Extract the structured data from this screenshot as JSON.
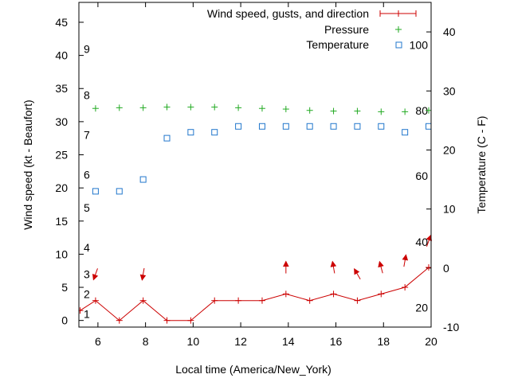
{
  "chart_data": {
    "type": "line",
    "xlabel": "Local time (America/New_York)",
    "ylabel_left": "Wind speed (kt - Beaufort)",
    "ylabel_right": "Temperature (C - F)",
    "xlim": [
      5.2,
      20
    ],
    "ylim_left": [
      -1,
      48
    ],
    "ylim_right": [
      -10,
      45
    ],
    "x_ticks": [
      6,
      8,
      10,
      12,
      14,
      16,
      18,
      20
    ],
    "y_left_ticks": [
      0,
      5,
      10,
      15,
      20,
      25,
      30,
      35,
      40,
      45
    ],
    "y_right_ticks": [
      -10,
      0,
      10,
      20,
      30,
      40
    ],
    "beaufort_labels": [
      {
        "label": "1",
        "kt": 1.0
      },
      {
        "label": "2",
        "kt": 4.0
      },
      {
        "label": "3",
        "kt": 7.0
      },
      {
        "label": "4",
        "kt": 11.0
      },
      {
        "label": "5",
        "kt": 17.0
      },
      {
        "label": "6",
        "kt": 22.0
      },
      {
        "label": "7",
        "kt": 28.0
      },
      {
        "label": "8",
        "kt": 34.0
      },
      {
        "label": "9",
        "kt": 41.0
      }
    ],
    "fahrenheit_labels": [
      {
        "label": "20",
        "celsius": -6.7
      },
      {
        "label": "40",
        "celsius": 4.4
      },
      {
        "label": "60",
        "celsius": 15.6
      },
      {
        "label": "80",
        "celsius": 26.7
      },
      {
        "label": "100",
        "celsius": 37.8
      }
    ],
    "legend": {
      "placement": "top-right",
      "wind": "Wind speed, gusts, and direction",
      "pressure": "Pressure",
      "temperature": "Temperature"
    },
    "colors": {
      "wind": "#cc0000",
      "pressure": "#22aa22",
      "temperature": "#2277cc",
      "axis": "#000000"
    },
    "series": [
      {
        "name": "Wind speed",
        "axis": "left",
        "x": [
          5.25,
          5.9,
          6.9,
          7.9,
          8.9,
          9.9,
          10.9,
          11.9,
          12.9,
          13.9,
          14.9,
          15.9,
          16.9,
          17.9,
          18.9,
          19.9
        ],
        "values": [
          1.5,
          3,
          0,
          3,
          0,
          0,
          3,
          3,
          3,
          4,
          3,
          4,
          3,
          4,
          5,
          8
        ]
      },
      {
        "name": "Pressure",
        "axis": "left",
        "x": [
          5.9,
          6.9,
          7.9,
          8.9,
          9.9,
          10.9,
          11.9,
          12.9,
          13.9,
          14.9,
          15.9,
          16.9,
          17.9,
          18.9,
          19.9
        ],
        "values": [
          32.0,
          32.1,
          32.1,
          32.2,
          32.2,
          32.2,
          32.1,
          32.0,
          31.9,
          31.7,
          31.6,
          31.6,
          31.5,
          31.5,
          31.7
        ]
      },
      {
        "name": "Temperature",
        "axis": "right",
        "x": [
          5.9,
          6.9,
          7.9,
          8.9,
          9.9,
          10.9,
          11.9,
          12.9,
          13.9,
          14.9,
          15.9,
          16.9,
          17.9,
          18.9,
          19.9
        ],
        "values": [
          13,
          13,
          15,
          22,
          23,
          23,
          24,
          24,
          24,
          24,
          24,
          24,
          24,
          23,
          24
        ]
      }
    ],
    "wind_direction_arrows": [
      {
        "x": 5.9,
        "kt": 7,
        "angle_deg": 200
      },
      {
        "x": 7.9,
        "kt": 7,
        "angle_deg": 190
      },
      {
        "x": 13.9,
        "kt": 8,
        "angle_deg": 0
      },
      {
        "x": 15.9,
        "kt": 8,
        "angle_deg": 350
      },
      {
        "x": 16.9,
        "kt": 7,
        "angle_deg": 330
      },
      {
        "x": 17.9,
        "kt": 8,
        "angle_deg": 345
      },
      {
        "x": 18.9,
        "kt": 9,
        "angle_deg": 10
      },
      {
        "x": 19.9,
        "kt": 12,
        "angle_deg": 20
      }
    ]
  }
}
